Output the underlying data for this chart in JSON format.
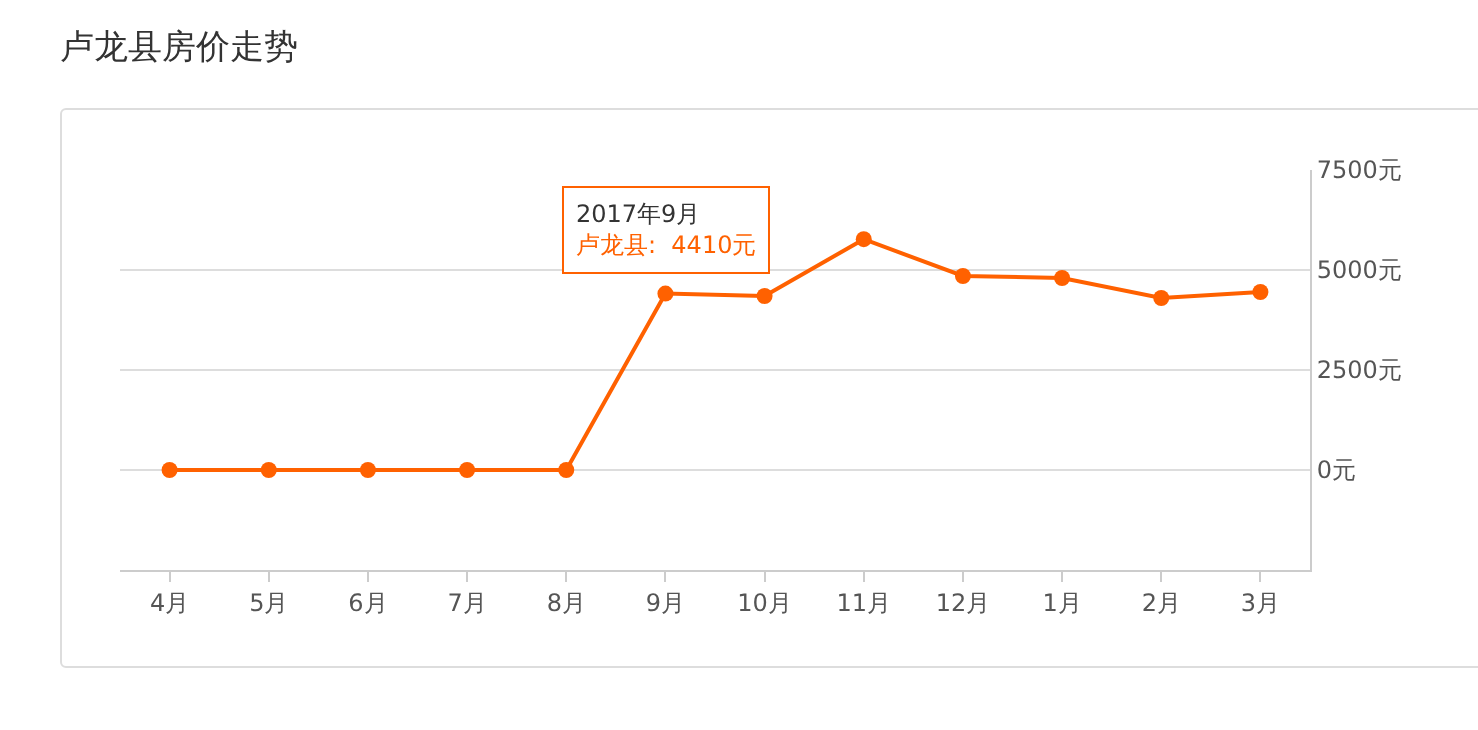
{
  "chart_data": {
    "type": "line",
    "title": "卢龙县房价走势",
    "categories": [
      "4月",
      "5月",
      "6月",
      "7月",
      "8月",
      "9月",
      "10月",
      "11月",
      "12月",
      "1月",
      "2月",
      "3月"
    ],
    "series": [
      {
        "color": "#ff6100",
        "values": [
          0,
          0,
          0,
          0,
          0,
          4410,
          4350,
          5770,
          4850,
          4800,
          4300,
          4450
        ]
      }
    ],
    "ylim": [
      -2500,
      7500
    ],
    "yticks": [
      {
        "value": 0,
        "label": "0元"
      },
      {
        "value": 2500,
        "label": "2500元"
      },
      {
        "value": 5000,
        "label": "5000元"
      },
      {
        "value": 7500,
        "label": "7500元"
      }
    ],
    "grid": "y",
    "marker": "circle",
    "line_style": "solid",
    "annotations": [
      {
        "text": "2017年9月",
        "x": "9月",
        "y": 4410
      },
      "卢龙县:  4410元"
    ]
  }
}
